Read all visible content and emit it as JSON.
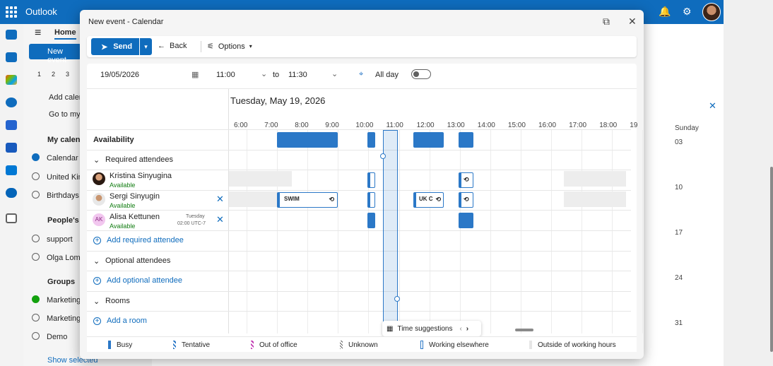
{
  "app": {
    "name": "Outlook"
  },
  "left_pane": {
    "tab_home": "Home",
    "new_event_button": "New event",
    "mini_calendar_days": [
      "1",
      "2",
      "3"
    ],
    "add_calendar": "Add calen",
    "go_to_my": "Go to my",
    "my_calendars": "My calenc",
    "calendars": [
      "Calendar",
      "United Kin",
      "Birthdays"
    ],
    "peoples_header": "People's c",
    "people": [
      "support",
      "Olga Loml"
    ],
    "groups_header": "Groups",
    "groups": [
      "Marketing",
      "Marketing",
      "Demo"
    ],
    "show_selected": "Show selected"
  },
  "background_calendar": {
    "sunday_header": "Sunday",
    "dates": [
      "03",
      "10",
      "17",
      "24",
      "31"
    ]
  },
  "dialog": {
    "title": "New event - Calendar",
    "toolbar": {
      "send": "Send",
      "back": "Back",
      "options": "Options"
    },
    "date": "19/05/2026",
    "start_time": "11:00",
    "to": "to",
    "end_time": "11:30",
    "all_day": "All day",
    "all_day_on": false,
    "day_heading": "Tuesday, May 19, 2026",
    "hours": [
      "6:00",
      "7:00",
      "8:00",
      "9:00",
      "10:00",
      "11:00",
      "12:00",
      "13:00",
      "14:00",
      "15:00",
      "16:00",
      "17:00",
      "18:00",
      "19"
    ],
    "availability": "Availability",
    "required_attendees": "Required attendees",
    "attendees": [
      {
        "name": "Kristina Sinyugina",
        "status": "Available"
      },
      {
        "name": "Sergi Sinyugin",
        "status": "Available"
      },
      {
        "name": "Alisa Kettunen",
        "status": "Available",
        "initials": "AK",
        "local_day": "Tuesday",
        "local_time": "02:00 UTC-7"
      }
    ],
    "add_required": "Add required attendee",
    "optional_attendees": "Optional attendees",
    "add_optional": "Add optional attendee",
    "rooms": "Rooms",
    "add_room": "Add a room",
    "events": {
      "swim": "SWIM",
      "uk": "UK C"
    },
    "time_suggestions": "Time suggestions",
    "legend": [
      "Busy",
      "Tentative",
      "Out of office",
      "Unknown",
      "Working elsewhere",
      "Outside of working hours"
    ]
  },
  "colors": {
    "accent": "#0f6cbd",
    "busy": "#2b78c7",
    "available": "#107c10",
    "out_of_office": "#c239b3"
  }
}
